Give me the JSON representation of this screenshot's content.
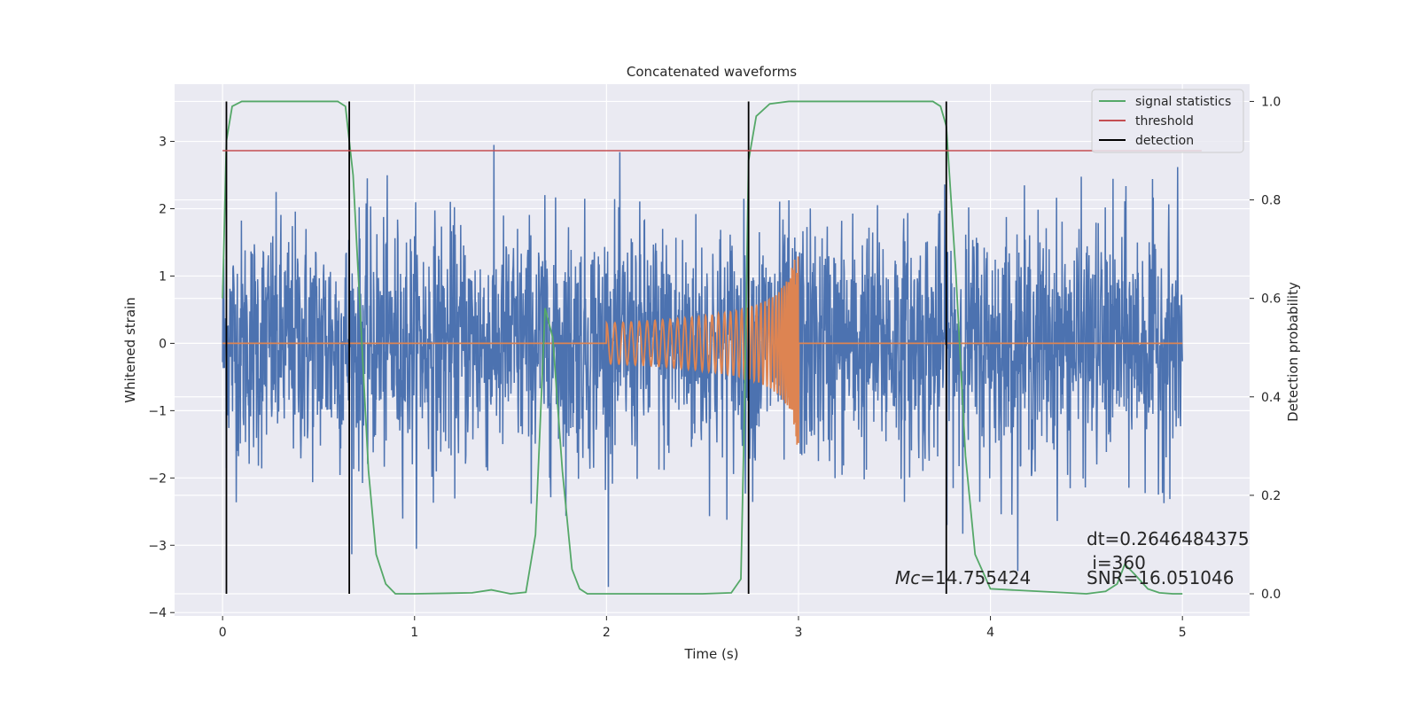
{
  "chart_data": {
    "type": "line",
    "title": "Concatenated waveforms",
    "xlabel": "Time (s)",
    "ylabel": "Whitened strain",
    "y2label": "Detection probability",
    "xlim": [
      -0.25,
      5.35
    ],
    "ylim": [
      -4.05,
      3.85
    ],
    "y2lim": [
      -0.045,
      1.035
    ],
    "xticks": [
      0,
      1,
      2,
      3,
      4,
      5
    ],
    "yticks": [
      -4,
      -3,
      -2,
      -1,
      0,
      1,
      2,
      3
    ],
    "y2ticks": [
      0.0,
      0.2,
      0.4,
      0.6,
      0.8,
      1.0
    ],
    "xtick_labels": [
      "0",
      "1",
      "2",
      "3",
      "4",
      "5"
    ],
    "ytick_labels": [
      "−4",
      "−3",
      "−2",
      "−1",
      "0",
      "1",
      "2",
      "3"
    ],
    "y2tick_labels": [
      "0.0",
      "0.2",
      "0.4",
      "0.6",
      "0.8",
      "1.0"
    ],
    "grid": true,
    "legend_position": "top-right",
    "colors": {
      "noise": "#4c72b0",
      "template": "#dd8452",
      "signal_statistics": "#55a868",
      "threshold": "#c44e52",
      "detection": "#000000",
      "background": "#eaeaf2",
      "grid": "#ffffff"
    },
    "series": [
      {
        "name": "signal statistics",
        "axis": "right",
        "x": [
          0.0,
          0.02,
          0.05,
          0.1,
          0.6,
          0.64,
          0.68,
          0.72,
          0.76,
          0.8,
          0.85,
          0.9,
          1.0,
          1.3,
          1.4,
          1.5,
          1.58,
          1.63,
          1.68,
          1.72,
          1.77,
          1.82,
          1.86,
          1.9,
          2.0,
          2.5,
          2.65,
          2.7,
          2.72,
          2.74,
          2.78,
          2.85,
          2.95,
          3.0,
          3.7,
          3.74,
          3.77,
          3.82,
          3.87,
          3.92,
          4.0,
          4.5,
          4.6,
          4.66,
          4.7,
          4.75,
          4.82,
          4.88,
          4.95,
          5.0
        ],
        "y": [
          0.6,
          0.92,
          0.99,
          1.0,
          1.0,
          0.99,
          0.85,
          0.55,
          0.25,
          0.08,
          0.02,
          0.0,
          0.0,
          0.002,
          0.008,
          0.0,
          0.003,
          0.12,
          0.58,
          0.52,
          0.25,
          0.05,
          0.01,
          0.0,
          0.0,
          0.0,
          0.002,
          0.03,
          0.4,
          0.88,
          0.97,
          0.995,
          1.0,
          1.0,
          1.0,
          0.99,
          0.95,
          0.65,
          0.28,
          0.08,
          0.01,
          0.0,
          0.005,
          0.02,
          0.06,
          0.04,
          0.01,
          0.002,
          0.0,
          0.0
        ]
      },
      {
        "name": "threshold",
        "axis": "right",
        "x": [
          0.0,
          5.1
        ],
        "y": [
          0.9,
          0.9
        ]
      },
      {
        "name": "detection",
        "axis": "right",
        "vlines": [
          0.02,
          0.66,
          2.74,
          3.77
        ],
        "ymin": 0.0,
        "ymax": 1.0
      }
    ],
    "annotations": [
      {
        "label": "Mc",
        "value": "=14.755424",
        "x": 3.5,
        "y": -3.5,
        "axis": "left"
      },
      {
        "text": "dt=0.2646484375",
        "x": 4.5,
        "y": -2.85,
        "axis": "left"
      },
      {
        "text": " i=360",
        "x": 4.5,
        "y": -3.2,
        "axis": "left"
      },
      {
        "text": "SNR=16.051046",
        "x": 4.5,
        "y": -3.5,
        "axis": "left"
      }
    ]
  }
}
